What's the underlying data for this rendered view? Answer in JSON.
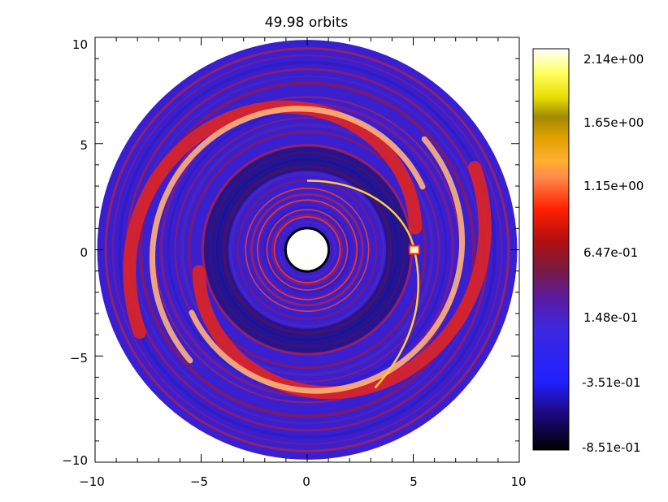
{
  "chart_data": {
    "type": "heatmap",
    "title": "49.98 orbits",
    "xlabel": "",
    "ylabel": "",
    "xlim": [
      -10,
      10
    ],
    "ylim": [
      -10,
      10
    ],
    "xticks": [
      "−10",
      "−5",
      "0",
      "5",
      "10"
    ],
    "xtick_values": [
      -10,
      -5,
      0,
      5,
      10
    ],
    "yticks": [
      "10",
      "5",
      "0",
      "−5",
      "−10"
    ],
    "ytick_values": [
      10,
      5,
      0,
      -5,
      -10
    ],
    "disk": {
      "inner_radius": 1.0,
      "outer_radius": 9.9
    },
    "planet": {
      "x": 5.05,
      "y": 0.0
    },
    "colorbar": {
      "labels": [
        "2.14e+00",
        "1.65e+00",
        "1.15e+00",
        "6.47e-01",
        "1.48e-01",
        "-3.51e-01",
        "-8.51e-01"
      ],
      "values": [
        2.14,
        1.65,
        1.15,
        0.647,
        0.148,
        -0.351,
        -0.851
      ],
      "range": [
        -0.851,
        2.14
      ]
    },
    "colors": {
      "background_disk": "#3a1fd0",
      "arm": "#e8241a",
      "arm_highlight": "#ffb27a",
      "gap_dark": "#0f0b5e",
      "hole": "#ffffff"
    }
  }
}
